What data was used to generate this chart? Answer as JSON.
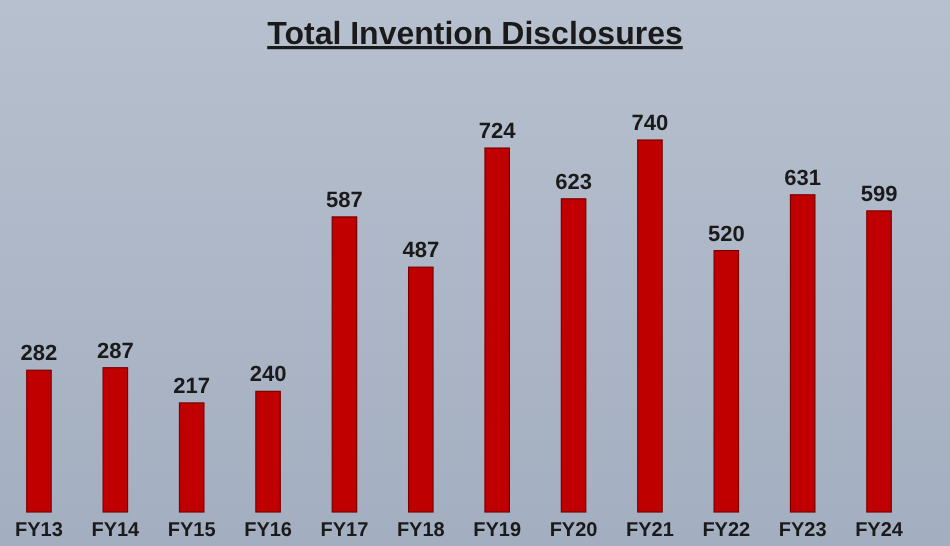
{
  "chart_data": {
    "type": "bar",
    "title": "Total Invention Disclosures",
    "categories": [
      "FY13",
      "FY14",
      "FY15",
      "FY16",
      "FY17",
      "FY18",
      "FY19",
      "FY20",
      "FY21",
      "FY22",
      "FY23",
      "FY24"
    ],
    "values": [
      282,
      287,
      217,
      240,
      587,
      487,
      724,
      623,
      740,
      520,
      631,
      599
    ],
    "color": "#c00000",
    "data_labels": true
  }
}
